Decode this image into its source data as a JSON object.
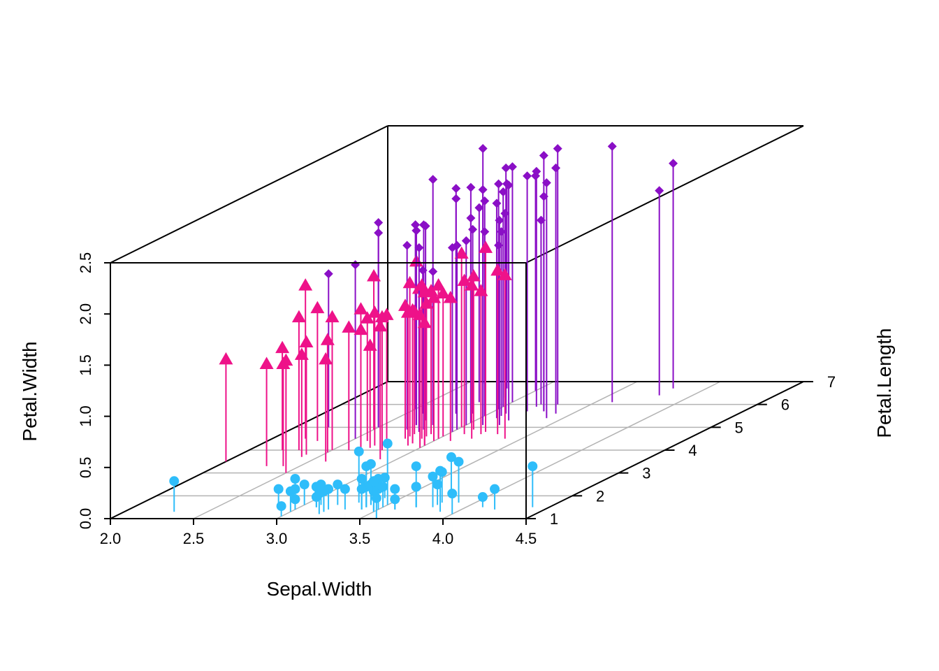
{
  "chart_data": {
    "type": "scatter",
    "subtype": "3d-scatter-with-drop-lines",
    "title": "",
    "xlabel": "Sepal.Width",
    "ylabel": "Petal.Length",
    "zlabel": "Petal.Width",
    "xlim": [
      2.0,
      4.5
    ],
    "ylim": [
      1,
      7
    ],
    "zlim": [
      0.0,
      2.5
    ],
    "x_ticks": [
      "2.0",
      "2.5",
      "3.0",
      "3.5",
      "4.0",
      "4.5"
    ],
    "y_ticks": [
      "1",
      "2",
      "3",
      "4",
      "5",
      "6",
      "7"
    ],
    "z_ticks": [
      "0.0",
      "0.5",
      "1.0",
      "1.5",
      "2.0",
      "2.5"
    ],
    "grid": true,
    "legend": "none",
    "colors": {
      "setosa": "#2ebdfa",
      "versicolor": "#ee1289",
      "virginica": "#8a0fc6",
      "box": "#000000",
      "grid": "#b3b3b3"
    },
    "series": [
      {
        "marker": "circle",
        "color": "#2ebdfa",
        "x": [
          3.5,
          3.0,
          3.2,
          3.1,
          3.6,
          3.9,
          3.4,
          3.4,
          2.9,
          3.1,
          3.7,
          3.4,
          3.0,
          3.0,
          4.0,
          4.4,
          3.9,
          3.5,
          3.8,
          3.8,
          3.4,
          3.7,
          3.6,
          3.3,
          3.4,
          3.0,
          3.4,
          3.5,
          3.4,
          3.2,
          3.1,
          3.4,
          4.1,
          4.2,
          3.1,
          3.2,
          3.5,
          3.6,
          3.0,
          3.4,
          3.5,
          2.3,
          3.2,
          3.5,
          3.8,
          3.0,
          3.8,
          3.2,
          3.7,
          3.3
        ],
        "y": [
          1.4,
          1.4,
          1.3,
          1.5,
          1.4,
          1.7,
          1.4,
          1.5,
          1.4,
          1.5,
          1.5,
          1.6,
          1.4,
          1.1,
          1.2,
          1.5,
          1.3,
          1.4,
          1.7,
          1.5,
          1.7,
          1.5,
          1.0,
          1.7,
          1.9,
          1.6,
          1.6,
          1.5,
          1.4,
          1.6,
          1.6,
          1.5,
          1.5,
          1.4,
          1.5,
          1.2,
          1.3,
          1.4,
          1.3,
          1.5,
          1.3,
          1.3,
          1.3,
          1.6,
          1.9,
          1.4,
          1.6,
          1.4,
          1.5,
          1.4
        ],
        "z": [
          0.2,
          0.2,
          0.2,
          0.2,
          0.2,
          0.4,
          0.3,
          0.2,
          0.2,
          0.1,
          0.2,
          0.2,
          0.1,
          0.1,
          0.2,
          0.4,
          0.4,
          0.3,
          0.3,
          0.3,
          0.2,
          0.4,
          0.2,
          0.5,
          0.2,
          0.2,
          0.4,
          0.2,
          0.2,
          0.2,
          0.2,
          0.4,
          0.1,
          0.2,
          0.2,
          0.2,
          0.2,
          0.1,
          0.2,
          0.2,
          0.3,
          0.3,
          0.2,
          0.6,
          0.4,
          0.3,
          0.2,
          0.2,
          0.2,
          0.2
        ]
      },
      {
        "marker": "triangle",
        "color": "#ee1289",
        "x": [
          3.2,
          3.2,
          3.1,
          2.3,
          2.8,
          2.8,
          3.3,
          2.4,
          2.9,
          2.7,
          2.0,
          3.0,
          2.2,
          2.9,
          2.9,
          3.1,
          3.0,
          2.7,
          2.2,
          2.5,
          3.2,
          2.8,
          2.5,
          2.8,
          2.9,
          3.0,
          2.8,
          3.0,
          2.9,
          2.6,
          2.4,
          2.4,
          2.7,
          2.7,
          3.0,
          3.4,
          3.1,
          2.3,
          3.0,
          2.5,
          2.6,
          3.0,
          2.6,
          2.3,
          2.7,
          3.0,
          2.9,
          2.9,
          2.5,
          2.8
        ],
        "y": [
          4.7,
          4.5,
          4.9,
          4.0,
          4.6,
          4.5,
          4.7,
          3.3,
          4.6,
          3.9,
          3.5,
          4.2,
          4.0,
          4.7,
          3.6,
          4.4,
          4.5,
          4.1,
          4.5,
          3.9,
          4.8,
          4.0,
          4.9,
          4.7,
          4.3,
          4.4,
          4.8,
          5.0,
          4.5,
          3.5,
          3.8,
          3.7,
          3.9,
          5.1,
          4.5,
          4.5,
          4.7,
          4.4,
          4.1,
          4.0,
          4.4,
          4.6,
          4.0,
          3.3,
          4.2,
          4.2,
          4.2,
          4.3,
          3.0,
          4.1
        ],
        "z": [
          1.4,
          1.5,
          1.5,
          1.3,
          1.5,
          1.3,
          1.6,
          1.0,
          1.3,
          1.4,
          1.0,
          1.5,
          1.0,
          1.4,
          1.3,
          1.4,
          1.5,
          1.0,
          1.5,
          1.1,
          1.8,
          1.3,
          1.5,
          1.2,
          1.3,
          1.4,
          1.4,
          1.7,
          1.5,
          1.0,
          1.1,
          1.0,
          1.2,
          1.6,
          1.5,
          1.6,
          1.5,
          1.3,
          1.3,
          1.3,
          1.2,
          1.4,
          1.2,
          1.0,
          1.3,
          1.2,
          1.3,
          1.3,
          1.1,
          1.3
        ]
      },
      {
        "marker": "diamond",
        "color": "#8a0fc6",
        "x": [
          3.3,
          2.7,
          3.0,
          2.9,
          3.0,
          3.0,
          2.5,
          2.9,
          2.5,
          3.6,
          3.2,
          2.7,
          3.0,
          2.5,
          2.8,
          3.2,
          3.0,
          3.8,
          2.6,
          2.2,
          3.2,
          2.8,
          2.8,
          2.7,
          3.3,
          3.2,
          2.8,
          3.0,
          2.8,
          3.0,
          2.8,
          3.8,
          2.8,
          2.8,
          2.6,
          3.0,
          3.4,
          3.1,
          3.0,
          3.1,
          3.1,
          3.1,
          2.7,
          3.2,
          3.3,
          3.0,
          2.5,
          3.0,
          3.4,
          3.0
        ],
        "y": [
          6.0,
          5.1,
          5.9,
          5.6,
          5.8,
          6.6,
          4.5,
          6.3,
          5.8,
          6.1,
          5.1,
          5.3,
          5.5,
          5.0,
          5.1,
          5.3,
          5.5,
          6.7,
          6.9,
          5.0,
          5.7,
          4.9,
          6.7,
          4.9,
          5.7,
          6.0,
          4.8,
          4.9,
          5.6,
          5.8,
          6.1,
          6.4,
          5.6,
          5.1,
          5.6,
          6.1,
          5.6,
          5.5,
          4.8,
          5.4,
          5.6,
          5.1,
          5.1,
          5.9,
          5.7,
          5.2,
          5.0,
          5.2,
          5.4,
          5.1
        ],
        "z": [
          2.5,
          1.9,
          2.1,
          1.8,
          2.2,
          2.1,
          1.7,
          1.8,
          1.8,
          2.5,
          2.0,
          1.9,
          2.1,
          2.0,
          2.4,
          2.3,
          1.8,
          2.2,
          2.3,
          1.5,
          2.3,
          2.0,
          2.0,
          1.8,
          2.1,
          1.8,
          1.8,
          1.8,
          2.1,
          1.6,
          1.9,
          2.0,
          2.2,
          1.5,
          1.4,
          2.3,
          2.4,
          1.8,
          1.8,
          2.1,
          2.4,
          2.3,
          1.9,
          2.3,
          2.5,
          2.3,
          1.9,
          2.0,
          2.3,
          1.8
        ]
      }
    ]
  }
}
